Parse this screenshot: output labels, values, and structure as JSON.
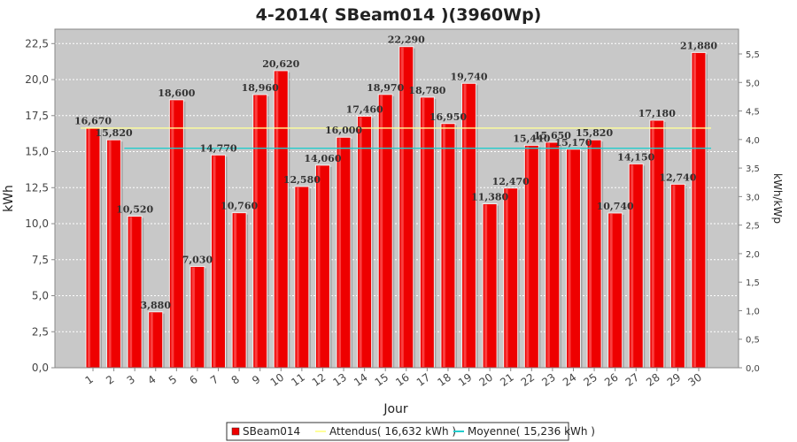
{
  "chart_data": {
    "type": "bar",
    "title": "4-2014( SBeam014 )(3960Wp)",
    "xlabel": "Jour",
    "ylabel": "kWh",
    "y2label": "kWh/kWp",
    "categories": [
      "1",
      "2",
      "3",
      "4",
      "5",
      "6",
      "7",
      "8",
      "9",
      "10",
      "11",
      "12",
      "13",
      "14",
      "15",
      "16",
      "17",
      "18",
      "19",
      "20",
      "21",
      "22",
      "23",
      "24",
      "25",
      "26",
      "27",
      "28",
      "29",
      "30"
    ],
    "series": [
      {
        "name": "SBeam014",
        "values": [
          16.67,
          15.82,
          10.52,
          3.88,
          18.6,
          7.03,
          14.77,
          10.76,
          18.96,
          20.62,
          12.58,
          14.06,
          16.0,
          17.46,
          18.97,
          22.29,
          18.78,
          16.95,
          19.74,
          11.38,
          12.47,
          15.44,
          15.65,
          15.17,
          15.82,
          10.74,
          14.15,
          17.18,
          12.74,
          21.88
        ],
        "labels": [
          "16,670",
          "15,820",
          "10,520",
          "3,880",
          "18,600",
          "7,030",
          "14,770",
          "10,760",
          "18,960",
          "20,620",
          "12,580",
          "14,060",
          "16,000",
          "17,460",
          "18,970",
          "22,290",
          "18,780",
          "16,950",
          "19,740",
          "11,380",
          "12,470",
          "15,440",
          "15,650",
          "15,170",
          "15,820",
          "10,740",
          "14,150",
          "17,180",
          "12,740",
          "21,880"
        ],
        "color": "#ee0000"
      }
    ],
    "reference_lines": [
      {
        "name": "Attendus( 16,632 kWh )",
        "value": 16.632,
        "color": "#ffff99"
      },
      {
        "name": "Moyenne( 15,236 kWh )",
        "value": 15.236,
        "color": "#22cccc"
      }
    ],
    "ylim": [
      0,
      23.5
    ],
    "yticks": [
      "0,0",
      "2,5",
      "5,0",
      "7,5",
      "10,0",
      "12,5",
      "15,0",
      "17,5",
      "20,0",
      "22,5"
    ],
    "y2lim": [
      0,
      5.934
    ],
    "y2ticks": [
      "0,0",
      "0,5",
      "1,0",
      "1,5",
      "2,0",
      "2,5",
      "3,0",
      "3,5",
      "4,0",
      "4,5",
      "5,0",
      "5,5"
    ],
    "plot_background": "#c8c8c8",
    "grid": true,
    "legend_position": "bottom"
  }
}
